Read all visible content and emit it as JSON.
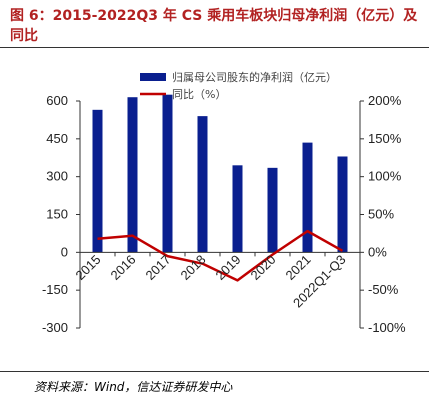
{
  "title": "图 6：2015-2022Q3 年 CS 乘用车板块归母净利润（亿元）及同比",
  "source": "资料来源：Wind，信达证券研发中心",
  "chart_data": {
    "type": "bar+line",
    "categories": [
      "2015",
      "2016",
      "2017",
      "2018",
      "2019",
      "2020",
      "2021",
      "2022Q1-Q3"
    ],
    "series": [
      {
        "name": "归属母公司股东的净利润（亿元）",
        "type": "bar",
        "axis": "left",
        "color": "#0a1f8f",
        "values": [
          565,
          615,
          625,
          540,
          345,
          335,
          435,
          380
        ]
      },
      {
        "name": "同比（%）",
        "type": "line",
        "axis": "right",
        "color": "#c00000",
        "values": [
          18,
          22,
          -5,
          -15,
          -37,
          -3,
          28,
          2
        ]
      }
    ],
    "y_left": {
      "ylim": [
        -300,
        600
      ],
      "ticks": [
        "-300",
        "-150",
        "0",
        "150",
        "300",
        "450",
        "600"
      ]
    },
    "y_right": {
      "ylim": [
        -100,
        200
      ],
      "ticks": [
        "-100%",
        "-50%",
        "0%",
        "50%",
        "100%",
        "150%",
        "200%"
      ]
    },
    "legend_position": "top-center",
    "grid": false
  }
}
